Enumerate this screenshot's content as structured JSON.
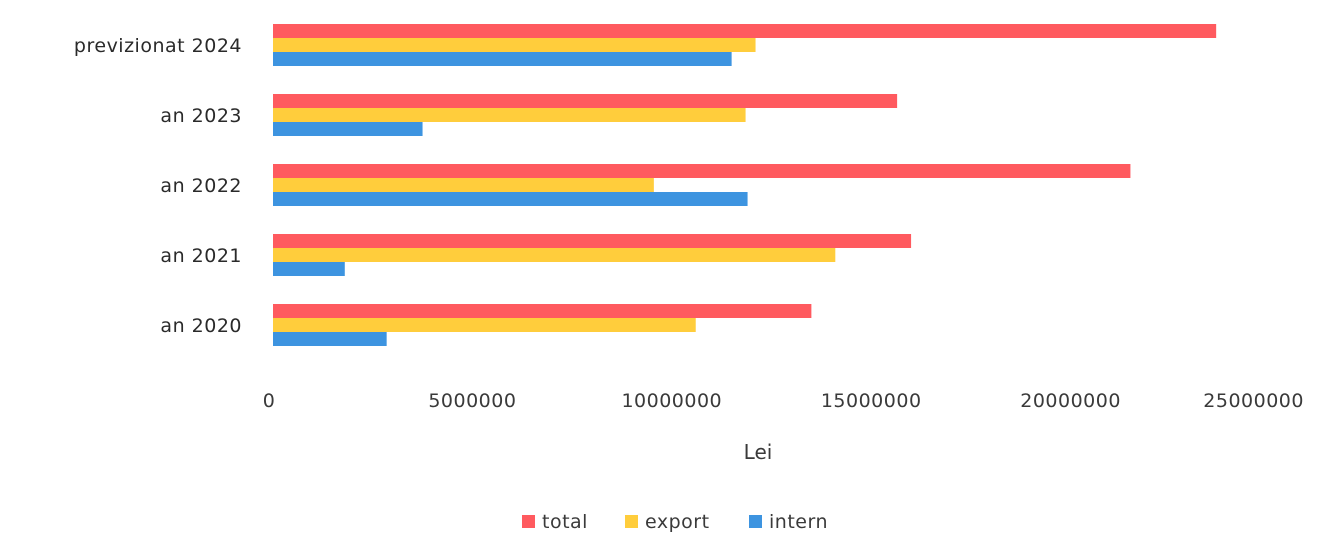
{
  "chart_data": {
    "type": "bar",
    "orientation": "horizontal",
    "title": "",
    "xlabel": "Lei",
    "ylabel": "",
    "categories": [
      "an 2020",
      "an 2021",
      "an 2022",
      "an 2023",
      "previzionat 2024"
    ],
    "series": [
      {
        "name": "total",
        "color": "#ff5a5f",
        "values": [
          13500000,
          16000000,
          21500000,
          15650000,
          23650000
        ]
      },
      {
        "name": "export",
        "color": "#ffcd3c",
        "values": [
          10600000,
          14100000,
          9550000,
          11850000,
          12100000
        ]
      },
      {
        "name": "intern",
        "color": "#3d94e0",
        "values": [
          2850000,
          1800000,
          11900000,
          3750000,
          11500000
        ]
      }
    ],
    "xlim": [
      0,
      25000000
    ],
    "xticks": [
      "0",
      "5000000",
      "10000000",
      "15000000",
      "20000000",
      "25000000"
    ],
    "grid": false,
    "legend": "bottom"
  }
}
